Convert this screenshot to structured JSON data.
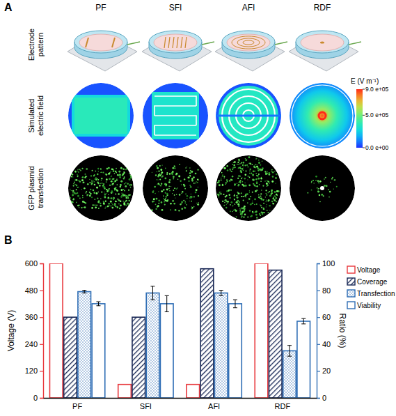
{
  "panel_labels": [
    "A",
    "B"
  ],
  "panel_a": {
    "columns": [
      "PF",
      "SFI",
      "AFI",
      "RDF"
    ],
    "rows": [
      "Electrode pattern",
      "Simulated electric field",
      "GFP plasmid transfection"
    ],
    "colorbar": {
      "title": "E (V m⁻¹)",
      "range": [
        0,
        900000
      ],
      "ticks": [
        {
          "value": 900000,
          "label": "9.0 e+05"
        },
        {
          "value": 500000,
          "label": "5.0 e+05"
        },
        {
          "value": 0,
          "label": "0.0 e+00"
        }
      ]
    }
  },
  "chart_data": {
    "type": "bar",
    "categories": [
      "PF",
      "SFI",
      "AFI",
      "RDF"
    ],
    "ylabel": "Voltage (V)",
    "y2label": "Ratio (%)",
    "ylim": [
      0,
      600
    ],
    "yticks": [
      0,
      120,
      240,
      360,
      480,
      600
    ],
    "y2lim": [
      0,
      100
    ],
    "y2ticks": [
      0,
      20,
      40,
      60,
      80,
      100
    ],
    "legend": "right",
    "series": [
      {
        "name": "Voltage",
        "color": "#e8383d",
        "values": [
          600,
          60,
          60,
          600
        ]
      },
      {
        "name": "Coverage",
        "color": "#1b2a57",
        "axis": "y2",
        "values": [
          60,
          60,
          96,
          95
        ]
      },
      {
        "name": "Transfection",
        "color": "#2f6eb5",
        "axis": "y2",
        "values": [
          79,
          78,
          78,
          35
        ],
        "errors": [
          1,
          5,
          2,
          4
        ]
      },
      {
        "name": "Viability",
        "color": "#2f6eb5",
        "axis": "y2",
        "values": [
          70,
          70,
          70,
          57
        ],
        "errors": [
          1.5,
          6,
          3,
          2
        ]
      }
    ]
  }
}
